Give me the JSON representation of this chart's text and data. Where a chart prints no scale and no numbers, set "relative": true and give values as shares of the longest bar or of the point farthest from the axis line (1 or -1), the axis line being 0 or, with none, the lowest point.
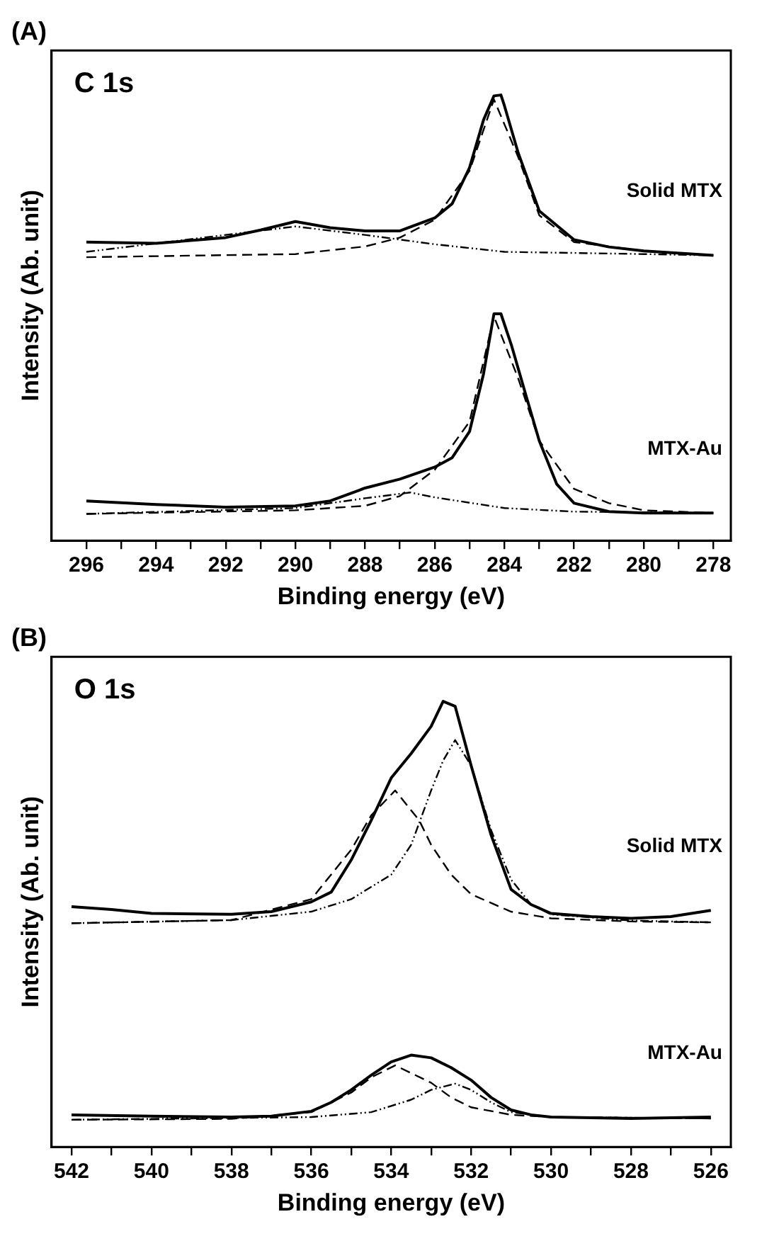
{
  "chart_data": [
    {
      "type": "line",
      "title": "(A)",
      "annotations": [
        "C 1s"
      ],
      "xlabel": "Binding energy (eV)",
      "ylabel": "Intensity (Ab. unit)",
      "relative": true,
      "grid": false,
      "legend": false,
      "marker": "none",
      "xlim": [
        297,
        277.5
      ],
      "xticks": [
        296,
        {
          "value": 295,
          "label": null
        },
        294,
        {
          "value": 293,
          "label": null
        },
        292,
        {
          "value": 291,
          "label": null
        },
        290,
        {
          "value": 289,
          "label": null
        },
        288,
        {
          "value": 287,
          "label": null
        },
        286,
        {
          "value": 285,
          "label": null
        },
        284,
        {
          "value": 283,
          "label": null
        },
        282,
        {
          "value": 281,
          "label": null
        },
        280,
        {
          "value": 279,
          "label": null
        },
        278
      ],
      "series": [
        {
          "name": "Solid MTX",
          "color": "#000000",
          "line_style": "solid",
          "x": [
            296,
            294,
            292,
            291,
            290,
            289,
            288,
            287,
            286,
            285.5,
            285,
            284.6,
            284.3,
            284.1,
            284,
            283.6,
            283,
            282,
            281,
            280,
            278
          ],
          "values": [
            0.67,
            0.667,
            0.68,
            0.697,
            0.716,
            0.702,
            0.695,
            0.695,
            0.724,
            0.756,
            0.837,
            0.944,
            0.998,
            1.0,
            0.976,
            0.869,
            0.74,
            0.675,
            0.659,
            0.65,
            0.64
          ]
        },
        {
          "color": "#000000",
          "line_style": "dashed",
          "x": [
            296,
            290,
            288,
            287,
            286,
            285,
            284.3,
            283.6,
            283,
            282,
            280,
            278
          ],
          "values": [
            0.636,
            0.643,
            0.66,
            0.68,
            0.72,
            0.83,
            0.99,
            0.86,
            0.73,
            0.67,
            0.65,
            0.64
          ]
        },
        {
          "color": "#000000",
          "line_style": "dotted",
          "x": [
            296,
            290,
            288,
            286,
            284,
            280,
            278
          ],
          "values": [
            0.648,
            0.705,
            0.686,
            0.665,
            0.648,
            0.643,
            0.64
          ]
        },
        {
          "name": "MTX-Au",
          "color": "#000000",
          "line_style": "solid",
          "x": [
            296,
            294,
            292,
            290,
            289,
            288,
            287,
            286,
            285.5,
            285,
            284.6,
            284.3,
            284.1,
            283.8,
            283.4,
            283,
            282.5,
            282,
            281,
            280,
            278
          ],
          "values": [
            0.089,
            0.081,
            0.075,
            0.078,
            0.089,
            0.118,
            0.138,
            0.165,
            0.186,
            0.245,
            0.374,
            0.509,
            0.509,
            0.439,
            0.331,
            0.224,
            0.127,
            0.084,
            0.065,
            0.062,
            0.062
          ]
        },
        {
          "color": "#000000",
          "line_style": "dashed",
          "x": [
            296,
            290,
            288,
            287,
            286,
            285,
            284.3,
            283.6,
            283,
            282,
            281,
            280,
            278
          ],
          "values": [
            0.06,
            0.068,
            0.078,
            0.1,
            0.159,
            0.267,
            0.503,
            0.363,
            0.224,
            0.116,
            0.084,
            0.068,
            0.062
          ]
        },
        {
          "color": "#000000",
          "line_style": "dotted",
          "x": [
            296,
            290,
            288,
            286.7,
            286,
            284,
            282,
            278
          ],
          "values": [
            0.06,
            0.073,
            0.095,
            0.108,
            0.097,
            0.073,
            0.065,
            0.062
          ]
        }
      ]
    },
    {
      "type": "line",
      "title": "(B)",
      "annotations": [
        "O 1s"
      ],
      "xlabel": "Binding energy (eV)",
      "ylabel": "Intensity (Ab. unit)",
      "relative": true,
      "grid": false,
      "legend": false,
      "marker": "none",
      "xlim": [
        542.5,
        525.5
      ],
      "xticks": [
        542,
        {
          "value": 541,
          "label": null
        },
        540,
        {
          "value": 539,
          "label": null
        },
        538,
        {
          "value": 537,
          "label": null
        },
        536,
        {
          "value": 535,
          "label": null
        },
        534,
        {
          "value": 533,
          "label": null
        },
        532,
        {
          "value": 531,
          "label": null
        },
        530,
        {
          "value": 529,
          "label": null
        },
        528,
        {
          "value": 527,
          "label": null
        },
        526
      ],
      "series": [
        {
          "name": "Solid MTX",
          "color": "#000000",
          "line_style": "solid",
          "x": [
            542,
            541,
            540,
            538,
            537,
            536,
            535.5,
            535,
            534.5,
            534,
            533.5,
            533,
            532.7,
            532.4,
            532,
            531.5,
            531,
            530.5,
            530,
            529,
            528,
            527,
            526
          ],
          "values": [
            0.539,
            0.533,
            0.524,
            0.522,
            0.528,
            0.55,
            0.572,
            0.644,
            0.733,
            0.828,
            0.883,
            0.944,
            1.0,
            0.989,
            0.856,
            0.7,
            0.578,
            0.544,
            0.524,
            0.517,
            0.513,
            0.517,
            0.531
          ]
        },
        {
          "color": "#000000",
          "line_style": "dashed",
          "x": [
            542,
            538,
            536,
            535,
            534.5,
            533.9,
            533.3,
            533,
            532.5,
            532,
            531,
            530,
            528,
            526
          ],
          "values": [
            0.502,
            0.509,
            0.556,
            0.667,
            0.744,
            0.8,
            0.733,
            0.678,
            0.611,
            0.567,
            0.528,
            0.513,
            0.506,
            0.504
          ]
        },
        {
          "color": "#000000",
          "line_style": "dotted",
          "x": [
            542,
            538,
            536,
            535,
            534,
            533.5,
            533,
            532.7,
            532.4,
            532,
            531.5,
            531,
            530.5,
            530,
            528,
            526
          ],
          "values": [
            0.502,
            0.509,
            0.528,
            0.556,
            0.611,
            0.678,
            0.8,
            0.867,
            0.913,
            0.856,
            0.711,
            0.6,
            0.544,
            0.522,
            0.508,
            0.504
          ]
        },
        {
          "name": "MTX-Au",
          "color": "#000000",
          "line_style": "solid",
          "x": [
            542,
            540,
            538,
            537,
            536,
            535.5,
            535,
            534.5,
            534,
            533.5,
            533,
            532.5,
            532,
            531.5,
            531,
            530.5,
            530,
            528,
            526
          ],
          "values": [
            0.072,
            0.069,
            0.067,
            0.069,
            0.08,
            0.1,
            0.128,
            0.161,
            0.191,
            0.206,
            0.2,
            0.178,
            0.15,
            0.111,
            0.083,
            0.072,
            0.067,
            0.064,
            0.067
          ]
        },
        {
          "color": "#000000",
          "line_style": "dashed",
          "x": [
            542,
            538,
            536,
            535,
            534.5,
            533.9,
            533,
            532.5,
            532,
            531,
            530,
            526
          ],
          "values": [
            0.061,
            0.063,
            0.078,
            0.122,
            0.156,
            0.183,
            0.144,
            0.111,
            0.089,
            0.072,
            0.067,
            0.064
          ]
        },
        {
          "color": "#000000",
          "line_style": "dotted",
          "x": [
            542,
            536,
            534.5,
            533.5,
            533,
            532.4,
            532,
            531.5,
            531,
            530,
            526
          ],
          "values": [
            0.061,
            0.067,
            0.078,
            0.106,
            0.128,
            0.142,
            0.128,
            0.1,
            0.078,
            0.067,
            0.064
          ]
        }
      ]
    }
  ]
}
